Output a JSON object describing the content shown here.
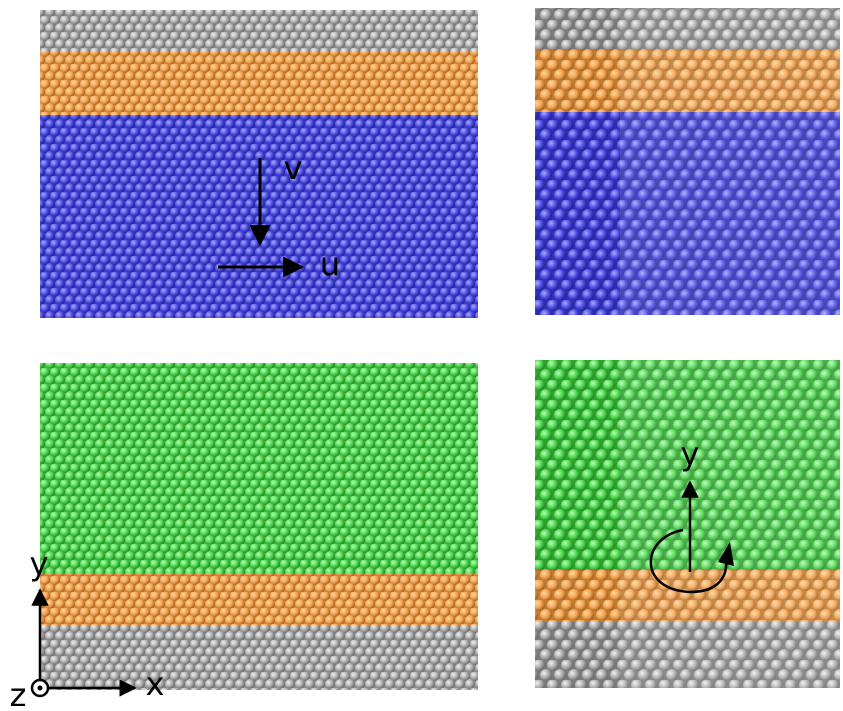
{
  "panels": {
    "top_left": {
      "labels": {
        "v": "v",
        "u": "u"
      }
    },
    "bottom_left": {
      "axes": {
        "y": "y",
        "x": "x",
        "z": "z"
      }
    },
    "bottom_right": {
      "labels": {
        "y": "y"
      }
    }
  }
}
